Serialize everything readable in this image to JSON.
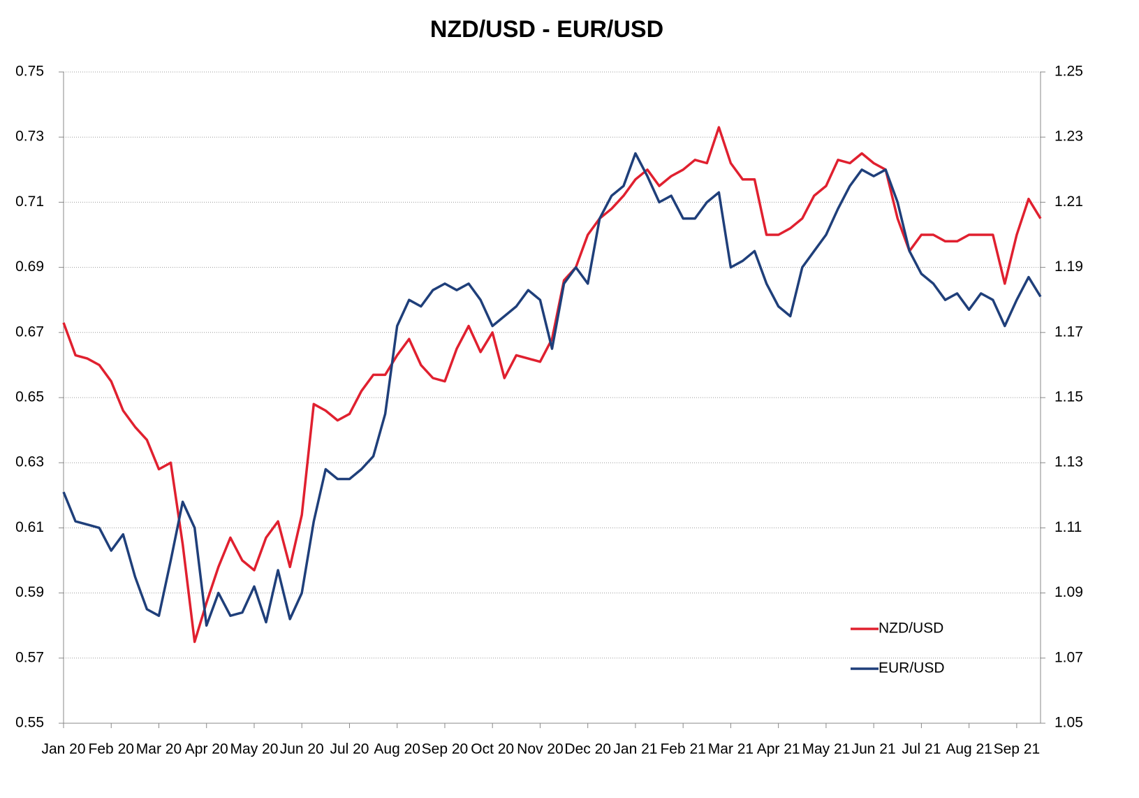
{
  "chart_data": {
    "type": "line",
    "title": "NZD/USD - EUR/USD",
    "categories": [
      "Jan 20",
      null,
      null,
      null,
      "Feb 20",
      null,
      null,
      null,
      "Mar 20",
      null,
      null,
      null,
      "Apr 20",
      null,
      null,
      null,
      "May 20",
      null,
      null,
      null,
      "Jun 20",
      null,
      null,
      null,
      "Jul 20",
      null,
      null,
      null,
      "Aug 20",
      null,
      null,
      null,
      "Sep 20",
      null,
      null,
      null,
      "Oct 20",
      null,
      null,
      null,
      "Nov 20",
      null,
      null,
      null,
      "Dec 20",
      null,
      null,
      null,
      "Jan 21",
      null,
      null,
      null,
      "Feb 21",
      null,
      null,
      null,
      "Mar 21",
      null,
      null,
      null,
      "Apr 21",
      null,
      null,
      null,
      "May 21",
      null,
      null,
      null,
      "Jun 21",
      null,
      null,
      null,
      "Jul 21",
      null,
      null,
      null,
      "Aug 21",
      null,
      null,
      null,
      "Sep 21",
      null,
      null
    ],
    "series": [
      {
        "name": "NZD/USD",
        "color": "#e0202f",
        "values": [
          0.673,
          0.663,
          0.662,
          0.66,
          0.655,
          0.646,
          0.641,
          0.637,
          0.628,
          0.63,
          0.605,
          0.575,
          0.587,
          0.598,
          0.607,
          0.6,
          0.597,
          0.607,
          0.612,
          0.598,
          0.614,
          0.648,
          0.646,
          0.643,
          0.645,
          0.652,
          0.657,
          0.657,
          0.663,
          0.668,
          0.66,
          0.656,
          0.655,
          0.665,
          0.672,
          0.664,
          0.67,
          0.656,
          0.663,
          0.662,
          0.661,
          0.668,
          0.686,
          0.69,
          0.7,
          0.705,
          0.708,
          0.712,
          0.717,
          0.72,
          0.715,
          0.718,
          0.72,
          0.723,
          0.722,
          0.733,
          0.722,
          0.717,
          0.717,
          0.7,
          0.7,
          0.702,
          0.705,
          0.712,
          0.715,
          0.723,
          0.722,
          0.725,
          0.722,
          0.72,
          0.705,
          0.695,
          0.7,
          0.7,
          0.698,
          0.698,
          0.7,
          0.7,
          0.7,
          0.685,
          0.7,
          0.711,
          0.705
        ]
      },
      {
        "name": "EUR/USD",
        "color": "#1f3f7a",
        "axis": "y2",
        "values": [
          1.121,
          1.112,
          1.111,
          1.11,
          1.103,
          1.108,
          1.095,
          1.085,
          1.083,
          1.1,
          1.118,
          1.11,
          1.08,
          1.09,
          1.083,
          1.084,
          1.092,
          1.081,
          1.097,
          1.082,
          1.09,
          1.112,
          1.128,
          1.125,
          1.125,
          1.128,
          1.132,
          1.145,
          1.172,
          1.18,
          1.178,
          1.183,
          1.185,
          1.183,
          1.185,
          1.18,
          1.172,
          1.175,
          1.178,
          1.183,
          1.18,
          1.165,
          1.185,
          1.19,
          1.185,
          1.205,
          1.212,
          1.215,
          1.225,
          1.218,
          1.21,
          1.212,
          1.205,
          1.205,
          1.21,
          1.213,
          1.19,
          1.192,
          1.195,
          1.185,
          1.178,
          1.175,
          1.19,
          1.195,
          1.2,
          1.208,
          1.215,
          1.22,
          1.218,
          1.22,
          1.21,
          1.195,
          1.188,
          1.185,
          1.18,
          1.182,
          1.177,
          1.182,
          1.18,
          1.172,
          1.18,
          1.187,
          1.181
        ]
      }
    ],
    "ylim": [
      0.55,
      0.75
    ],
    "yticks": [
      0.55,
      0.57,
      0.59,
      0.61,
      0.63,
      0.65,
      0.67,
      0.69,
      0.71,
      0.73,
      0.75
    ],
    "y2lim": [
      1.05,
      1.25
    ],
    "y2ticks": [
      1.05,
      1.07,
      1.09,
      1.11,
      1.13,
      1.15,
      1.17,
      1.19,
      1.21,
      1.23,
      1.25
    ],
    "grid": true,
    "legend": "lower right"
  }
}
